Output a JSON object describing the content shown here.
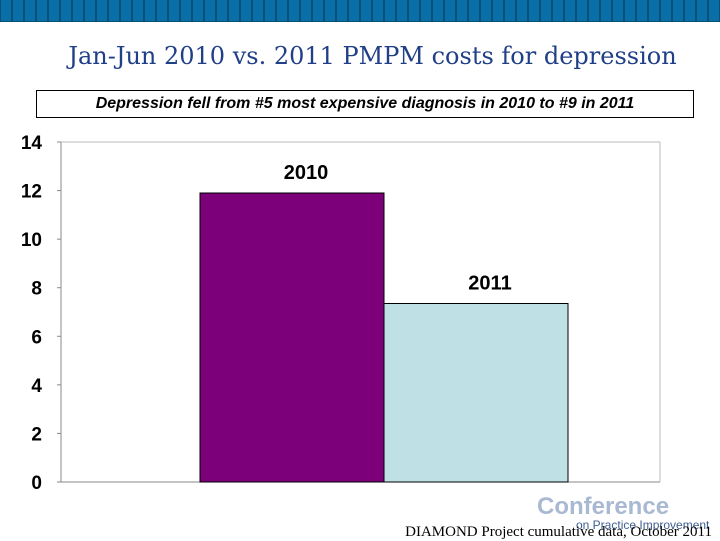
{
  "slide": {
    "title": "Jan-Jun 2010 vs. 2011 PMPM costs for depression",
    "subtitle": "Depression fell from #5 most expensive diagnosis in 2010 to #9 in 2011",
    "source_note": "DIAMOND Project cumulative data, October 2011",
    "logo_main": "Conference",
    "logo_sub": "on Practice Improvement"
  },
  "colors": {
    "topbar": "#0a6fa6",
    "bar_2010": "#7b0079",
    "bar_2011": "#bfe0e4",
    "title": "#1f3f87"
  },
  "chart_data": {
    "type": "bar",
    "categories": [
      "2010",
      "2011"
    ],
    "values": [
      11.9,
      7.35
    ],
    "data_labels": [
      "2010",
      "2011"
    ],
    "colors": [
      "#7b0079",
      "#bfe0e4"
    ],
    "ylim": [
      0,
      14
    ],
    "yticks": [
      0,
      2,
      4,
      6,
      8,
      10,
      12,
      14
    ],
    "xlabel": "",
    "ylabel": "",
    "grid": false,
    "legend": "none"
  }
}
